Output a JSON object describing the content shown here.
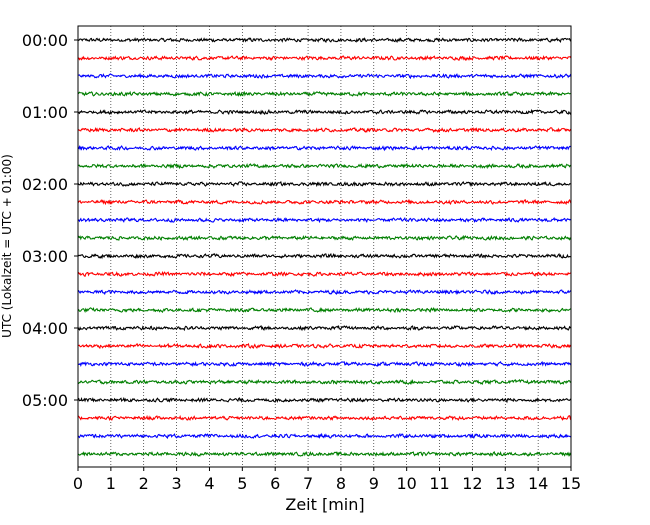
{
  "chart_data": {
    "type": "line",
    "description_kind": "helicorder",
    "xlabel": "Zeit  [min]",
    "ylabel": "UTC (Lokalzeit = UTC + 01:00)",
    "xlim": [
      0,
      15
    ],
    "x_ticks": [
      0,
      1,
      2,
      3,
      4,
      5,
      6,
      7,
      8,
      9,
      10,
      11,
      12,
      13,
      14,
      15
    ],
    "x_tick_labels": [
      "0",
      "1",
      "2",
      "3",
      "4",
      "5",
      "6",
      "7",
      "8",
      "9",
      "10",
      "11",
      "12",
      "13",
      "14",
      "15"
    ],
    "y_tick_labels": [
      "00:00",
      "01:00",
      "02:00",
      "03:00",
      "04:00",
      "05:00"
    ],
    "grid": "vertical dotted at every minute",
    "line_minutes": 15,
    "trace_count": 24,
    "trace_colors": [
      "#000000",
      "#ff0000",
      "#0000ff",
      "#007f00"
    ],
    "noise_amplitude": 0.3
  }
}
